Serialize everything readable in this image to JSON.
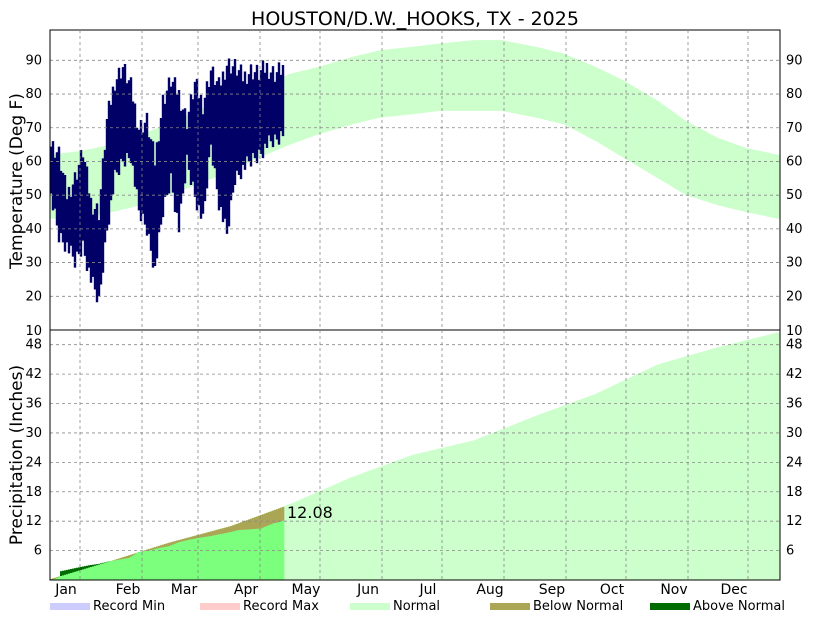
{
  "chart_data": [
    {
      "type": "line",
      "panel": "temperature",
      "title": "HOUSTON/D.W._HOOKS, TX - 2025",
      "ylabel": "Temperature (Deg F)",
      "ylim": [
        10,
        99
      ],
      "yticks": [
        20,
        30,
        40,
        50,
        60,
        70,
        80,
        90
      ],
      "grid": true,
      "normal_band": {
        "name": "Normal",
        "day": [
          1,
          15,
          32,
          46,
          60,
          74,
          91,
          105,
          121,
          135,
          152,
          166,
          182,
          196,
          213,
          227,
          244,
          258,
          274,
          288,
          305,
          319,
          335,
          349,
          365
        ],
        "low": [
          43,
          43,
          45,
          47,
          50,
          53,
          57,
          61,
          65,
          68,
          71,
          73,
          74,
          75,
          75,
          75,
          73,
          71,
          66,
          61,
          55,
          50,
          47,
          45,
          43
        ],
        "high": [
          62,
          63,
          65,
          68,
          71,
          75,
          79,
          82,
          86,
          88,
          91,
          93,
          94,
          95,
          96,
          96,
          94,
          92,
          88,
          84,
          78,
          72,
          67,
          64,
          62
        ]
      },
      "observed_daily_range_2025": {
        "day": [
          1,
          5,
          9,
          13,
          17,
          21,
          25,
          29,
          33,
          37,
          41,
          45,
          49,
          53,
          57,
          61,
          65,
          69,
          73,
          77,
          81,
          85,
          89,
          93,
          97,
          101,
          105,
          109,
          113,
          117
        ],
        "low": [
          50,
          38,
          35,
          30,
          35,
          25,
          18,
          40,
          55,
          60,
          62,
          45,
          40,
          28,
          45,
          55,
          40,
          60,
          50,
          42,
          65,
          48,
          38,
          55,
          58,
          60,
          62,
          65,
          66,
          68
        ],
        "high": [
          65,
          62,
          50,
          55,
          63,
          48,
          45,
          72,
          84,
          88,
          82,
          70,
          72,
          60,
          78,
          84,
          80,
          72,
          83,
          77,
          87,
          82,
          89,
          88,
          85,
          87,
          86,
          88,
          86,
          88
        ]
      }
    },
    {
      "type": "area",
      "panel": "precipitation",
      "ylabel": "Precipitation (Inches)",
      "ylim": [
        0,
        51
      ],
      "yticks": [
        6,
        12,
        18,
        24,
        30,
        36,
        42,
        48
      ],
      "grid": true,
      "month_labels": [
        "Jan",
        "Feb",
        "Mar",
        "Apr",
        "May",
        "Jun",
        "Jul",
        "Aug",
        "Sep",
        "Oct",
        "Nov",
        "Dec"
      ],
      "annotation": "12.08",
      "normal_cumulative": {
        "name": "Normal",
        "day": [
          1,
          32,
          60,
          91,
          121,
          152,
          182,
          213,
          244,
          274,
          305,
          335,
          365
        ],
        "value": [
          0.2,
          4.0,
          7.6,
          11.0,
          15.5,
          21.0,
          25.5,
          28.5,
          33.5,
          38.0,
          44.0,
          47.5,
          50.5
        ]
      },
      "observed_cumulative_2025": {
        "day": [
          1,
          3,
          5,
          6,
          14,
          20,
          25,
          30,
          36,
          40,
          45,
          50,
          55,
          60,
          65,
          70,
          75,
          80,
          85,
          90,
          95,
          100,
          106,
          110,
          112,
          115,
          117
        ],
        "value": [
          0.0,
          0.2,
          0.6,
          1.8,
          2.5,
          3.0,
          3.3,
          3.8,
          4.2,
          4.5,
          5.7,
          6.0,
          6.5,
          6.9,
          7.7,
          8.2,
          8.6,
          8.9,
          9.3,
          9.7,
          10.2,
          10.3,
          10.5,
          11.2,
          11.5,
          11.8,
          12.08
        ]
      }
    }
  ],
  "legend": [
    {
      "label": "Record Min",
      "color": "#ccccff"
    },
    {
      "label": "Record Max",
      "color": "#ffcccc"
    },
    {
      "label": "Normal",
      "color": "#ccffcc"
    },
    {
      "label": "Below Normal",
      "color": "#aaa655"
    },
    {
      "label": "Above Normal",
      "color": "#006b00"
    }
  ],
  "colors": {
    "normal": "#ccffcc",
    "observed_line": "#000066",
    "observed_precip": "#7cff7c",
    "below_normal": "#aaa655",
    "above_normal": "#006b00"
  }
}
